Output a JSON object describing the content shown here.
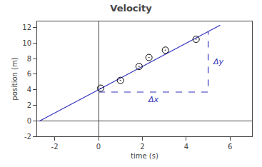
{
  "chart_data": {
    "type": "scatter",
    "title": "Velocity",
    "x_label": "time (s)",
    "y_label": "position (m)",
    "xlim": [
      -2.8,
      7.0
    ],
    "ylim": [
      -2,
      12.8
    ],
    "xticks": [
      -2,
      0,
      2,
      4,
      6
    ],
    "yticks": [
      -2,
      0,
      2,
      4,
      6,
      8,
      10,
      12
    ],
    "grid": false,
    "series": [
      {
        "type": "line",
        "color": "#3333bb",
        "line_style": "solid",
        "x": [
          -2.7,
          5.55
        ],
        "values": [
          -0.05,
          12.325
        ]
      },
      {
        "type": "line",
        "color": "#3333bb",
        "line_style": "dashed",
        "x": [
          0.0,
          5.0,
          5.0
        ],
        "values": [
          3.7,
          3.7,
          11.5
        ],
        "annotations": [
          "Δx",
          "Δy"
        ]
      },
      {
        "type": "scatter",
        "color": "#000000",
        "marker": "circle",
        "x": [
          0.1,
          1.0,
          1.85,
          2.3,
          3.05,
          4.45
        ],
        "values": [
          4.2,
          5.2,
          7.0,
          8.15,
          9.1,
          10.5
        ]
      }
    ]
  }
}
